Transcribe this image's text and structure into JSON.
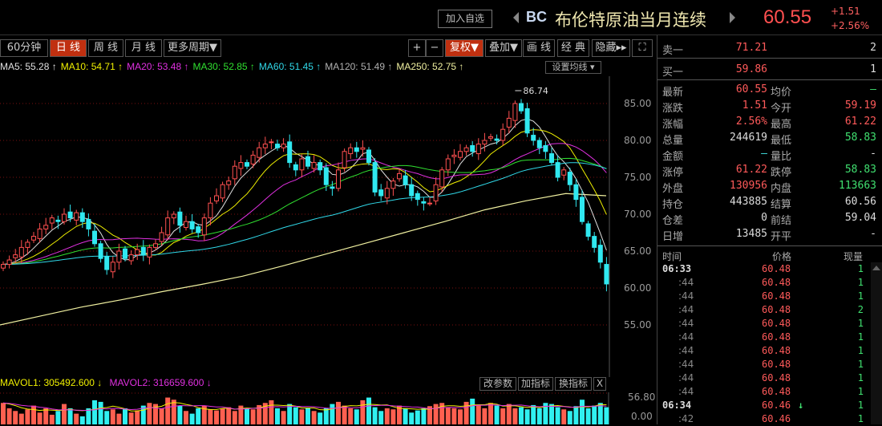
{
  "header": {
    "watch_label": "加入自选",
    "code": "BC",
    "name": "布伦特原油当月连续",
    "price": "60.55",
    "change": "+1.51",
    "change_pct": "+2.56%"
  },
  "toolbar": {
    "periods": [
      "60分钟",
      "日 线",
      "周 线",
      "月 线",
      "更多周期▼"
    ],
    "active_period": 1,
    "right": [
      "+",
      "−",
      "复权▼",
      "叠加▼",
      "画 线",
      "经 典",
      "隐藏▸▸",
      "⛶"
    ],
    "active_right": 2
  },
  "ma_legend": [
    {
      "text": "MA5: 55.28 ↑",
      "color": "#e0e0e0"
    },
    {
      "text": "MA10: 54.71 ↑",
      "color": "#f0f000"
    },
    {
      "text": "MA20: 53.48 ↑",
      "color": "#e030e0"
    },
    {
      "text": "MA30: 52.85 ↑",
      "color": "#30e030"
    },
    {
      "text": "MA60: 51.45 ↑",
      "color": "#30d8e8"
    },
    {
      "text": "MA120: 51.49 ↑",
      "color": "#b0b0b0"
    },
    {
      "text": "MA250: 52.75 ↑",
      "color": "#f0f0a0"
    }
  ],
  "set_ma_label": "设置均线 ▾",
  "volume": {
    "mavol1": "MAVOL1: 305492.600 ↓",
    "mavol2": "MAVOL2: 316659.600 ↓",
    "buttons": [
      "改参数",
      "加指标",
      "换指标",
      "X"
    ],
    "axis": [
      "56.80",
      "0.00"
    ]
  },
  "chart_data": {
    "type": "candlestick",
    "price_axis": [
      "85.00",
      "80.00",
      "75.00",
      "70.00",
      "65.00",
      "60.00",
      "55.00"
    ],
    "ylim": [
      53,
      89
    ],
    "max_label": "86.74",
    "closes": [
      63.2,
      63.8,
      64.5,
      65.5,
      66.2,
      67,
      68,
      68.5,
      69.5,
      69,
      70,
      69.5,
      70.2,
      69,
      68,
      66,
      64,
      62.5,
      63.5,
      65,
      64,
      64.5,
      65.2,
      64.5,
      65.5,
      66,
      67.5,
      69.5,
      70,
      68.5,
      69,
      68,
      67.5,
      69.5,
      71.5,
      72.5,
      74,
      74.5,
      76.5,
      77,
      76.5,
      78,
      79,
      79.5,
      79.8,
      79,
      79.5,
      77,
      76,
      77.5,
      76.5,
      77,
      76,
      74,
      73.5,
      76,
      78.5,
      79,
      78.5,
      79,
      77,
      73,
      72.5,
      73.5,
      74.5,
      75.5,
      74,
      72.5,
      72,
      71.5,
      71.5,
      74,
      76,
      77.5,
      78,
      78.5,
      79,
      78.5,
      79.5,
      80,
      80.5,
      80,
      81.5,
      83,
      85,
      84,
      81,
      80,
      79,
      78.5,
      77,
      75,
      76,
      74,
      72,
      69,
      67,
      65.5,
      63.5,
      60.55
    ],
    "ma250": [
      55,
      56.2,
      57.4,
      58.4,
      59.5,
      60.5,
      61.6,
      63,
      64.5,
      66,
      67.5,
      69,
      70.6,
      71.8,
      72.8,
      72.5
    ],
    "volumes": [
      40,
      30,
      25,
      20,
      28,
      35,
      22,
      30,
      18,
      25,
      38,
      30,
      20,
      15,
      30,
      45,
      42,
      25,
      28,
      20,
      30,
      22,
      26,
      35,
      40,
      38,
      30,
      50,
      46,
      35,
      25,
      20,
      30,
      35,
      28,
      26,
      30,
      32,
      25,
      35,
      30,
      28,
      36,
      40,
      45,
      30,
      25,
      38,
      32,
      28,
      30,
      25,
      22,
      30,
      38,
      42,
      35,
      30,
      28,
      45,
      50,
      32,
      25,
      30,
      28,
      35,
      30,
      22,
      26,
      30,
      34,
      38,
      40,
      32,
      30,
      28,
      42,
      48,
      35,
      30,
      40,
      35,
      30,
      38,
      30,
      32,
      28,
      36,
      30,
      40,
      38,
      32,
      28,
      25,
      34,
      46,
      30,
      35,
      40,
      32
    ],
    "vol_max": 56.8
  },
  "quote": {
    "ask": {
      "label": "卖一",
      "price": "71.21",
      "vol": "2"
    },
    "bid": {
      "label": "买一",
      "price": "59.86",
      "vol": "1"
    },
    "rows": [
      [
        "最新",
        "60.55",
        "red",
        "均价",
        "—",
        "grn"
      ],
      [
        "涨跌",
        "1.51",
        "red",
        "今开",
        "59.19",
        "red"
      ],
      [
        "涨幅",
        "2.56%",
        "red",
        "最高",
        "61.22",
        "red"
      ],
      [
        "总量",
        "244619",
        "wht",
        "最低",
        "58.83",
        "grn"
      ],
      [
        "金额",
        "—",
        "cyan",
        "量比",
        "-",
        "wht"
      ],
      [
        "涨停",
        "61.22",
        "red",
        "跌停",
        "58.83",
        "grn"
      ],
      [
        "外盘",
        "130956",
        "red",
        "内盘",
        "113663",
        "grn"
      ],
      [
        "持仓",
        "443885",
        "wht",
        "结算",
        "60.56",
        "wht"
      ],
      [
        "仓差",
        "0",
        "wht",
        "前结",
        "59.04",
        "wht"
      ],
      [
        "日增",
        "13485",
        "wht",
        "开平",
        "-",
        "wht"
      ]
    ]
  },
  "ticks": {
    "headers": [
      "时间",
      "价格",
      "现量"
    ],
    "rows": [
      [
        "06:33",
        "60.48",
        "",
        "1"
      ],
      [
        ":44",
        "60.48",
        "",
        "1"
      ],
      [
        ":44",
        "60.48",
        "",
        "1"
      ],
      [
        ":44",
        "60.48",
        "",
        "2"
      ],
      [
        ":44",
        "60.48",
        "",
        "1"
      ],
      [
        ":44",
        "60.48",
        "",
        "1"
      ],
      [
        ":44",
        "60.48",
        "",
        "1"
      ],
      [
        ":44",
        "60.48",
        "",
        "1"
      ],
      [
        ":44",
        "60.48",
        "",
        "1"
      ],
      [
        ":44",
        "60.48",
        "",
        "1"
      ],
      [
        "06:34",
        "60.46",
        "↓",
        "1"
      ],
      [
        ":42",
        "60.46",
        "",
        "1"
      ]
    ]
  }
}
